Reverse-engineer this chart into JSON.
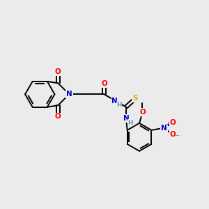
{
  "background_color": "#ebebeb",
  "bond_color": "#000000",
  "atom_colors": {
    "O": "#ff0000",
    "N": "#0000cc",
    "S": "#ccaa00",
    "C": "#000000",
    "H": "#6699aa",
    "NO2_N": "#0000cc",
    "NO2_O": "#ff0000"
  },
  "figsize": [
    3.0,
    3.0
  ],
  "dpi": 100
}
